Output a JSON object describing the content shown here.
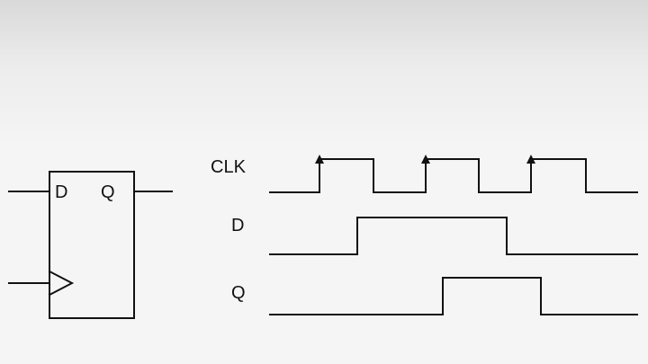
{
  "flipflop": {
    "d_label": "D",
    "q_label": "Q"
  },
  "timing": {
    "clk_label": "CLK",
    "d_label": "D",
    "q_label": "Q"
  },
  "colors": {
    "ink": "#111111",
    "background": "#f5f5f5"
  }
}
